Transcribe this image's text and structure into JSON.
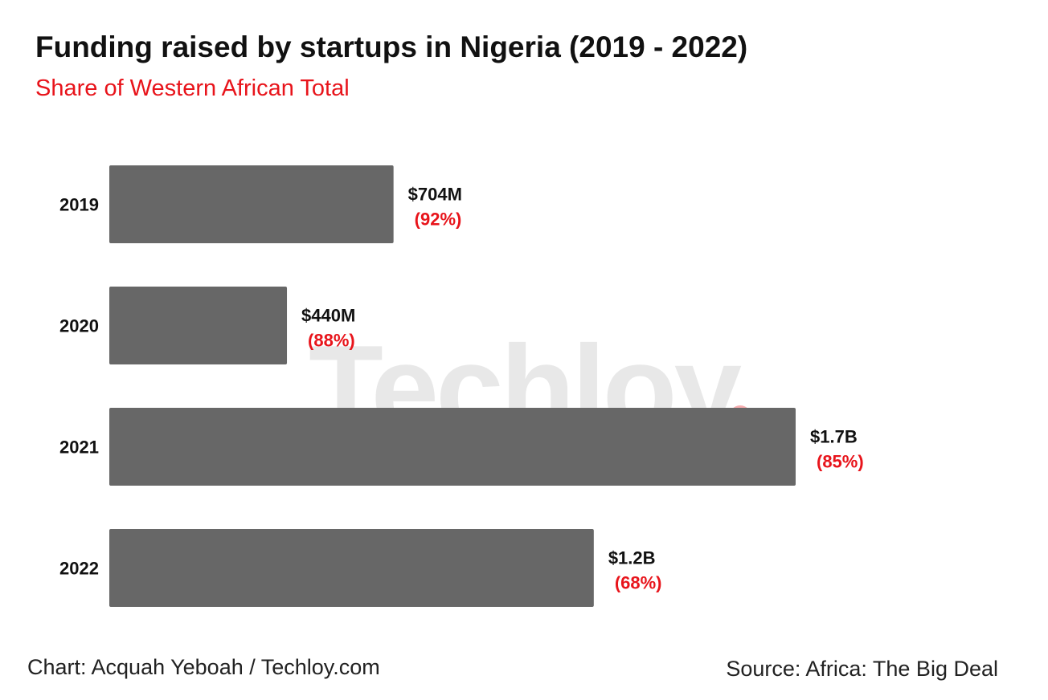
{
  "title": "Funding raised by startups in Nigeria (2019 - 2022)",
  "subtitle": "Share of Western African Total",
  "watermark": {
    "text": "Techloy",
    "dot_color": "#e8141b"
  },
  "footer": {
    "credit": "Chart: Acquah Yeboah / Techloy.com",
    "source": "Source: Africa: The Big Deal"
  },
  "colors": {
    "bar": "#676767",
    "value_label": "#111111",
    "share_label": "#e8141b",
    "category_label": "#111111"
  },
  "chart_data": {
    "type": "bar",
    "orientation": "horizontal",
    "title": "Funding raised by startups in Nigeria (2019 - 2022)",
    "subtitle": "Share of Western African Total",
    "categories": [
      "2019",
      "2020",
      "2021",
      "2022"
    ],
    "values": [
      704,
      440,
      1700,
      1200
    ],
    "value_labels": [
      "$704M",
      "$440M",
      "$1.7B",
      "$1.2B"
    ],
    "share_labels": [
      "(92%)",
      "(88%)",
      "(85%)",
      "(68%)"
    ],
    "grid": false,
    "xlabel": "",
    "ylabel": ""
  }
}
